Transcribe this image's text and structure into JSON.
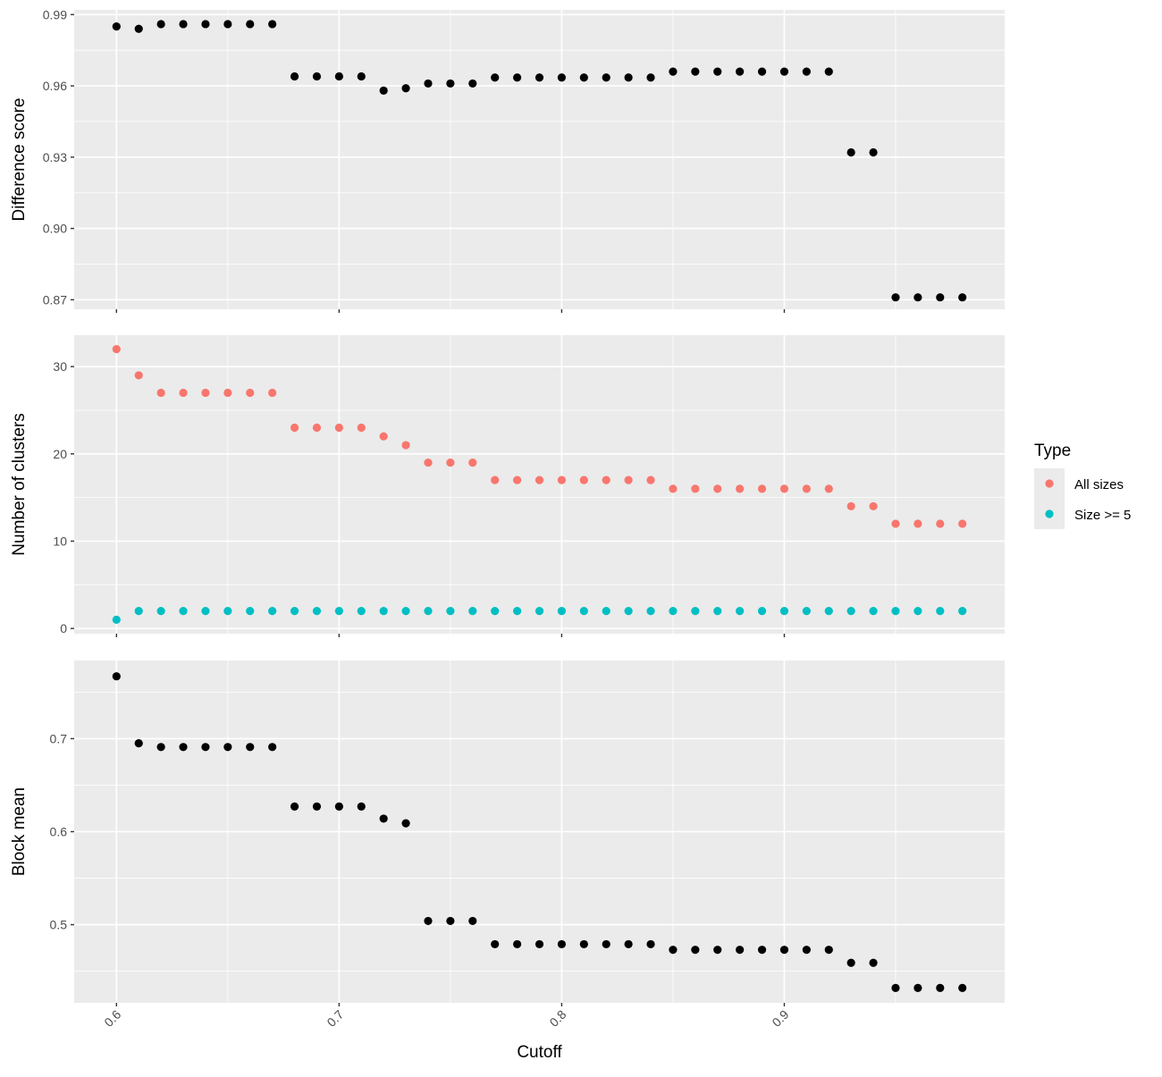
{
  "chart_data": [
    {
      "type": "scatter",
      "ylabel": "Difference score",
      "xlabel": "",
      "xlim": [
        0.581,
        0.999
      ],
      "ylim": [
        0.866,
        0.992
      ],
      "yticks": [
        0.87,
        0.9,
        0.93,
        0.96,
        0.99
      ],
      "ytick_labels": [
        "0.87",
        "0.90",
        "0.93",
        "0.96",
        "0.99"
      ],
      "grid": true,
      "series": [
        {
          "color": "#000000",
          "x": [
            0.6,
            0.61,
            0.62,
            0.63,
            0.64,
            0.65,
            0.66,
            0.67,
            0.68,
            0.69,
            0.7,
            0.71,
            0.72,
            0.73,
            0.74,
            0.75,
            0.76,
            0.77,
            0.78,
            0.79,
            0.8,
            0.81,
            0.82,
            0.83,
            0.84,
            0.85,
            0.86,
            0.87,
            0.88,
            0.89,
            0.9,
            0.91,
            0.92,
            0.93,
            0.94,
            0.95,
            0.96,
            0.97,
            0.98
          ],
          "y": [
            0.985,
            0.984,
            0.986,
            0.986,
            0.986,
            0.986,
            0.986,
            0.986,
            0.964,
            0.964,
            0.964,
            0.964,
            0.958,
            0.959,
            0.961,
            0.961,
            0.961,
            0.9635,
            0.9635,
            0.9635,
            0.9635,
            0.9635,
            0.9635,
            0.9635,
            0.9635,
            0.966,
            0.966,
            0.966,
            0.966,
            0.966,
            0.966,
            0.966,
            0.966,
            0.932,
            0.932,
            0.871,
            0.871,
            0.871,
            0.871
          ]
        }
      ]
    },
    {
      "type": "scatter",
      "ylabel": "Number of clusters",
      "xlabel": "",
      "xlim": [
        0.581,
        0.999
      ],
      "ylim": [
        -0.6,
        33.6
      ],
      "yticks": [
        0,
        10,
        20,
        30
      ],
      "ytick_labels": [
        "0",
        "10",
        "20",
        "30"
      ],
      "grid": true,
      "legend": {
        "title": "Type",
        "placement": "right",
        "entries": [
          "All sizes",
          "Size >= 5"
        ]
      },
      "series": [
        {
          "name": "All sizes",
          "color": "#F8766D",
          "x": [
            0.6,
            0.61,
            0.62,
            0.63,
            0.64,
            0.65,
            0.66,
            0.67,
            0.68,
            0.69,
            0.7,
            0.71,
            0.72,
            0.73,
            0.74,
            0.75,
            0.76,
            0.77,
            0.78,
            0.79,
            0.8,
            0.81,
            0.82,
            0.83,
            0.84,
            0.85,
            0.86,
            0.87,
            0.88,
            0.89,
            0.9,
            0.91,
            0.92,
            0.93,
            0.94,
            0.95,
            0.96,
            0.97,
            0.98
          ],
          "y": [
            32,
            29,
            27,
            27,
            27,
            27,
            27,
            27,
            23,
            23,
            23,
            23,
            22,
            21,
            19,
            19,
            19,
            17,
            17,
            17,
            17,
            17,
            17,
            17,
            17,
            16,
            16,
            16,
            16,
            16,
            16,
            16,
            16,
            14,
            14,
            12,
            12,
            12,
            12
          ]
        },
        {
          "name": "Size >= 5",
          "color": "#00BFC4",
          "x": [
            0.6,
            0.61,
            0.62,
            0.63,
            0.64,
            0.65,
            0.66,
            0.67,
            0.68,
            0.69,
            0.7,
            0.71,
            0.72,
            0.73,
            0.74,
            0.75,
            0.76,
            0.77,
            0.78,
            0.79,
            0.8,
            0.81,
            0.82,
            0.83,
            0.84,
            0.85,
            0.86,
            0.87,
            0.88,
            0.89,
            0.9,
            0.91,
            0.92,
            0.93,
            0.94,
            0.95,
            0.96,
            0.97,
            0.98
          ],
          "y": [
            1,
            2,
            2,
            2,
            2,
            2,
            2,
            2,
            2,
            2,
            2,
            2,
            2,
            2,
            2,
            2,
            2,
            2,
            2,
            2,
            2,
            2,
            2,
            2,
            2,
            2,
            2,
            2,
            2,
            2,
            2,
            2,
            2,
            2,
            2,
            2,
            2,
            2,
            2
          ]
        }
      ]
    },
    {
      "type": "scatter",
      "ylabel": "Block mean",
      "xlabel": "Cutoff",
      "xlim": [
        0.581,
        0.999
      ],
      "ylim": [
        0.416,
        0.784
      ],
      "yticks": [
        0.5,
        0.6,
        0.7
      ],
      "ytick_labels": [
        "0.5",
        "0.6",
        "0.7"
      ],
      "xticks": [
        0.6,
        0.7,
        0.8,
        0.9
      ],
      "xtick_labels": [
        "0.6",
        "0.7",
        "0.8",
        "0.9"
      ],
      "grid": true,
      "series": [
        {
          "color": "#000000",
          "x": [
            0.6,
            0.61,
            0.62,
            0.63,
            0.64,
            0.65,
            0.66,
            0.67,
            0.68,
            0.69,
            0.7,
            0.71,
            0.72,
            0.73,
            0.74,
            0.75,
            0.76,
            0.77,
            0.78,
            0.79,
            0.8,
            0.81,
            0.82,
            0.83,
            0.84,
            0.85,
            0.86,
            0.87,
            0.88,
            0.89,
            0.9,
            0.91,
            0.92,
            0.93,
            0.94,
            0.95,
            0.96,
            0.97,
            0.98
          ],
          "y": [
            0.767,
            0.695,
            0.691,
            0.691,
            0.691,
            0.691,
            0.691,
            0.691,
            0.627,
            0.627,
            0.627,
            0.627,
            0.614,
            0.609,
            0.504,
            0.504,
            0.504,
            0.479,
            0.479,
            0.479,
            0.479,
            0.479,
            0.479,
            0.479,
            0.479,
            0.473,
            0.473,
            0.473,
            0.473,
            0.473,
            0.473,
            0.473,
            0.473,
            0.459,
            0.459,
            0.432,
            0.432,
            0.432,
            0.432
          ]
        }
      ]
    }
  ]
}
